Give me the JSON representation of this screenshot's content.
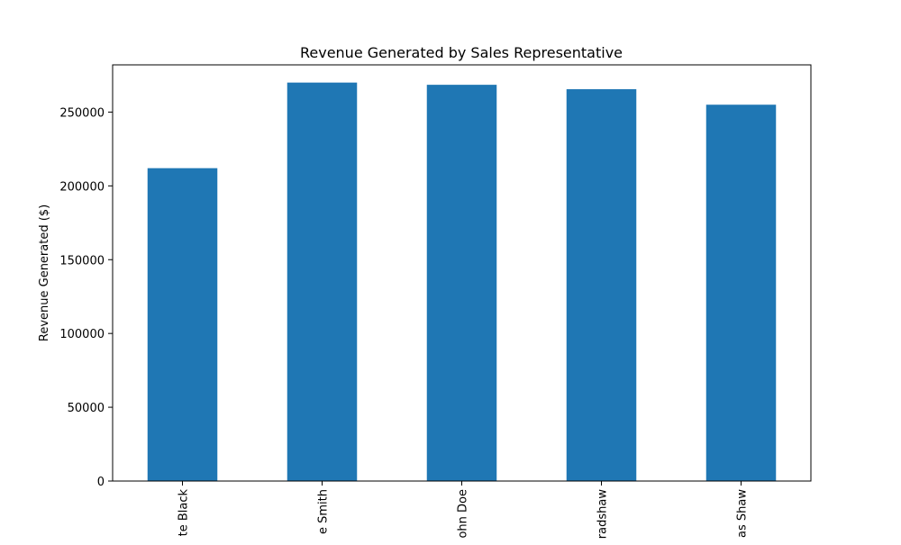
{
  "chart_data": {
    "type": "bar",
    "title": "Revenue Generated by Sales Representative",
    "xlabel": "",
    "ylabel": "Revenue Generated ($)",
    "categories": [
      "te Black",
      "e Smith",
      "ohn Doe",
      "radshaw",
      "as Shaw"
    ],
    "values": [
      212000,
      270000,
      268500,
      265500,
      255000
    ],
    "ylim": [
      0,
      282000
    ],
    "yticks": [
      0,
      50000,
      100000,
      150000,
      200000,
      250000
    ],
    "ytick_labels": [
      "0",
      "50000",
      "100000",
      "150000",
      "200000",
      "250000"
    ],
    "bar_color": "#1f77b4",
    "grid": false,
    "legend": "none"
  }
}
